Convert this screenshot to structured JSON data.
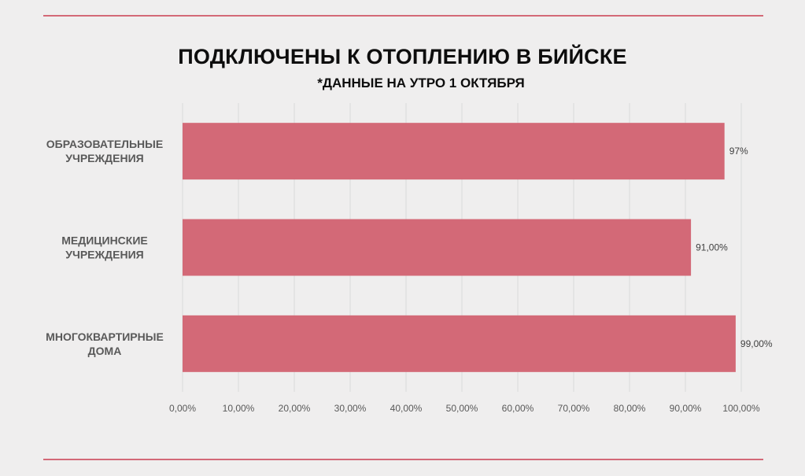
{
  "colors": {
    "background": "#efeeee",
    "accent": "#d36977",
    "grid": "#d9d9d9",
    "rule": "#d36977"
  },
  "chart_data": {
    "type": "bar",
    "orientation": "horizontal",
    "title": "ПОДКЛЮЧЕНЫ К ОТОПЛЕНИЮ В БИЙСКЕ",
    "subtitle": "*ДАННЫЕ НА УТРО 1 ОКТЯБРЯ",
    "categories": [
      [
        "ОБРАЗОВАТЕЛЬНЫЕ",
        "УЧРЕЖДЕНИЯ"
      ],
      [
        "МЕДИЦИНСКИЕ",
        "УЧРЕЖДЕНИЯ"
      ],
      [
        "МНОГОКВАРТИРНЫЕ",
        "ДОМА"
      ]
    ],
    "values": [
      97,
      91,
      99
    ],
    "data_labels": [
      "97%",
      "91,00%",
      "99,00%"
    ],
    "xlim": [
      0,
      100
    ],
    "ticks": [
      "0,00%",
      "10,00%",
      "20,00%",
      "30,00%",
      "40,00%",
      "50,00%",
      "60,00%",
      "70,00%",
      "80,00%",
      "90,00%",
      "100,00%"
    ],
    "grid": true,
    "legend": false,
    "xlabel": "",
    "ylabel": ""
  }
}
